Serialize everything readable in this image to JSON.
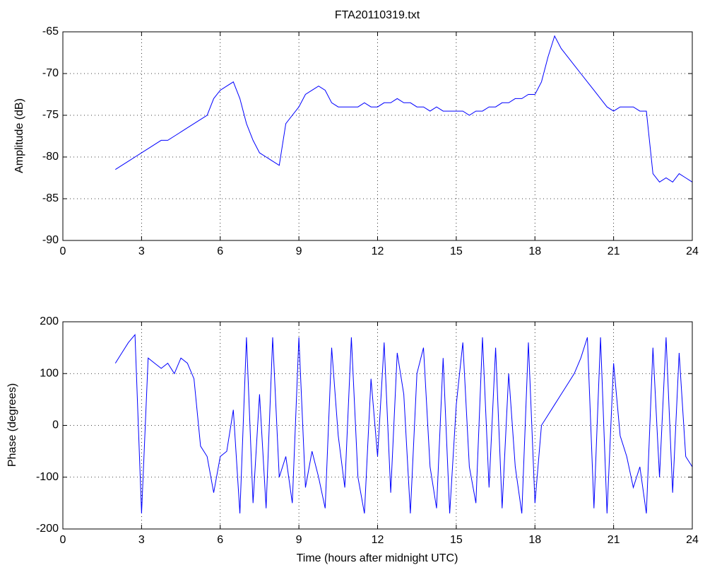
{
  "chart_data": [
    {
      "type": "line",
      "title": "FTA20110319.txt",
      "ylabel": "Amplitude (dB)",
      "x": [
        2,
        2.25,
        2.5,
        2.75,
        3,
        3.25,
        3.5,
        3.75,
        4,
        4.25,
        4.5,
        4.75,
        5,
        5.25,
        5.5,
        5.75,
        6,
        6.25,
        6.5,
        6.75,
        7,
        7.25,
        7.5,
        7.75,
        8,
        8.25,
        8.5,
        8.75,
        9,
        9.25,
        9.5,
        9.75,
        10,
        10.25,
        10.5,
        10.75,
        11,
        11.25,
        11.5,
        11.75,
        12,
        12.25,
        12.5,
        12.75,
        13,
        13.25,
        13.5,
        13.75,
        14,
        14.25,
        14.5,
        14.75,
        15,
        15.25,
        15.5,
        15.75,
        16,
        16.25,
        16.5,
        16.75,
        17,
        17.25,
        17.5,
        17.75,
        18,
        18.25,
        18.5,
        18.75,
        19,
        19.25,
        19.5,
        19.75,
        20,
        20.25,
        20.5,
        20.75,
        21,
        21.25,
        21.5,
        21.75,
        22,
        22.25,
        22.5,
        22.75,
        23,
        23.25,
        23.5,
        23.75,
        24
      ],
      "series": [
        {
          "color": "#0000ff",
          "values": [
            -81.5,
            -81,
            -80.5,
            -80,
            -79.5,
            -79,
            -78.5,
            -78,
            -78,
            -77.5,
            -77,
            -76.5,
            -76,
            -75.5,
            -75,
            -73,
            -72,
            -71.5,
            -71,
            -73,
            -76,
            -78,
            -79.5,
            -80,
            -80.5,
            -81,
            -76,
            -75,
            -74,
            -72.5,
            -72,
            -71.5,
            -72,
            -73.5,
            -74,
            -74,
            -74,
            -74,
            -73.5,
            -74,
            -74,
            -73.5,
            -73.5,
            -73,
            -73.5,
            -73.5,
            -74,
            -74,
            -74.5,
            -74,
            -74.5,
            -74.5,
            -74.5,
            -74.5,
            -75,
            -74.5,
            -74.5,
            -74,
            -74,
            -73.5,
            -73.5,
            -73,
            -73,
            -72.5,
            -72.5,
            -71,
            -68,
            -65.5,
            -67,
            -68,
            -69,
            -70,
            -71,
            -72,
            -73,
            -74,
            -74.5,
            -74,
            -74,
            -74,
            -74.5,
            -74.5,
            -82,
            -83,
            -82.5,
            -83,
            -82,
            -82.5,
            -83
          ]
        }
      ],
      "xlim": [
        0,
        24
      ],
      "xticks": [
        0,
        3,
        6,
        9,
        12,
        15,
        18,
        21,
        24
      ],
      "ylim": [
        -90,
        -65
      ],
      "yticks": [
        -90,
        -85,
        -80,
        -75,
        -70,
        -65
      ],
      "grid": true
    },
    {
      "type": "line",
      "ylabel": "Phase (degrees)",
      "xlabel": "Time (hours after midnight UTC)",
      "x": [
        2,
        2.25,
        2.5,
        2.75,
        3,
        3.25,
        3.5,
        3.75,
        4,
        4.25,
        4.5,
        4.75,
        5,
        5.25,
        5.5,
        5.75,
        6,
        6.25,
        6.5,
        6.75,
        7,
        7.25,
        7.5,
        7.75,
        8,
        8.25,
        8.5,
        8.75,
        9,
        9.25,
        9.5,
        9.75,
        10,
        10.25,
        10.5,
        10.75,
        11,
        11.25,
        11.5,
        11.75,
        12,
        12.25,
        12.5,
        12.75,
        13,
        13.25,
        13.5,
        13.75,
        14,
        14.25,
        14.5,
        14.75,
        15,
        15.25,
        15.5,
        15.75,
        16,
        16.25,
        16.5,
        16.75,
        17,
        17.25,
        17.5,
        17.75,
        18,
        18.25,
        18.5,
        18.75,
        19,
        19.25,
        19.5,
        19.75,
        20,
        20.25,
        20.5,
        20.75,
        21,
        21.25,
        21.5,
        21.75,
        22,
        22.25,
        22.5,
        22.75,
        23,
        23.25,
        23.5,
        23.75,
        24
      ],
      "series": [
        {
          "color": "#0000ff",
          "values": [
            120,
            140,
            160,
            175,
            -170,
            130,
            120,
            110,
            120,
            100,
            130,
            120,
            90,
            -40,
            -60,
            -130,
            -60,
            -50,
            30,
            -170,
            170,
            -150,
            60,
            -160,
            170,
            -100,
            -60,
            -150,
            170,
            -120,
            -50,
            -100,
            -160,
            150,
            -20,
            -120,
            170,
            -100,
            -170,
            90,
            -60,
            160,
            -130,
            140,
            60,
            -170,
            100,
            150,
            -80,
            -160,
            130,
            -170,
            40,
            160,
            -80,
            -150,
            170,
            -120,
            150,
            -160,
            100,
            -80,
            -170,
            160,
            -150,
            0,
            20,
            40,
            60,
            80,
            100,
            130,
            170,
            -160,
            170,
            -170,
            120,
            -20,
            -60,
            -120,
            -80,
            -170,
            150,
            -100,
            170,
            -130,
            140,
            -60,
            -80
          ]
        }
      ],
      "xlim": [
        0,
        24
      ],
      "xticks": [
        0,
        3,
        6,
        9,
        12,
        15,
        18,
        21,
        24
      ],
      "ylim": [
        -200,
        200
      ],
      "yticks": [
        -200,
        -100,
        0,
        100,
        200
      ],
      "grid": true
    }
  ]
}
